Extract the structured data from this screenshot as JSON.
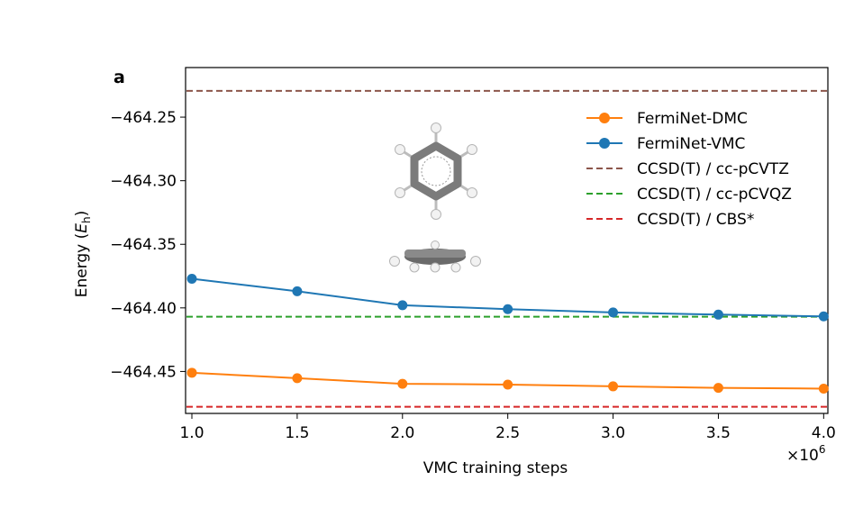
{
  "chart_data": {
    "type": "line",
    "panel_label": "a",
    "xlabel": "VMC training steps",
    "x_multiplier_label": "×10",
    "x_multiplier_exp": "6",
    "ylabel_prefix": "Energy (",
    "ylabel_symbol": "E",
    "ylabel_subscript": "h",
    "ylabel_suffix": ")",
    "xlim": [
      0.97,
      4.02
    ],
    "ylim": [
      -464.483,
      -464.211
    ],
    "x_ticks": [
      1.0,
      1.5,
      2.0,
      2.5,
      3.0,
      3.5,
      4.0
    ],
    "x_tick_labels": [
      "1.0",
      "1.5",
      "2.0",
      "2.5",
      "3.0",
      "3.5",
      "4.0"
    ],
    "y_ticks": [
      -464.25,
      -464.3,
      -464.35,
      -464.4,
      -464.45
    ],
    "y_tick_labels": [
      "−464.25",
      "−464.30",
      "−464.35",
      "−464.40",
      "−464.45"
    ],
    "x": [
      1.0,
      1.5,
      2.0,
      2.5,
      3.0,
      3.5,
      4.0
    ],
    "series": [
      {
        "name": "FermiNet-DMC",
        "color": "#ff7f0e",
        "style": "line-marker",
        "values": [
          -464.451,
          -464.4553,
          -464.4597,
          -464.4603,
          -464.4617,
          -464.4629,
          -464.4635
        ]
      },
      {
        "name": "FermiNet-VMC",
        "color": "#1f77b4",
        "style": "line-marker",
        "values": [
          -464.3771,
          -464.3869,
          -464.3979,
          -464.401,
          -464.4036,
          -464.4053,
          -464.4067
        ]
      }
    ],
    "reference_lines": [
      {
        "name": "CCSD(T) / cc-pCVTZ",
        "color": "#8c564b",
        "value": -464.2293
      },
      {
        "name": "CCSD(T) / cc-pCVQZ",
        "color": "#2ca02c",
        "value": -464.4069
      },
      {
        "name": "CCSD(T) / CBS*",
        "color": "#d62728",
        "value": -464.4778
      }
    ],
    "legend_location": "upper-right",
    "inset": "benzene molecule (top and side views)"
  }
}
